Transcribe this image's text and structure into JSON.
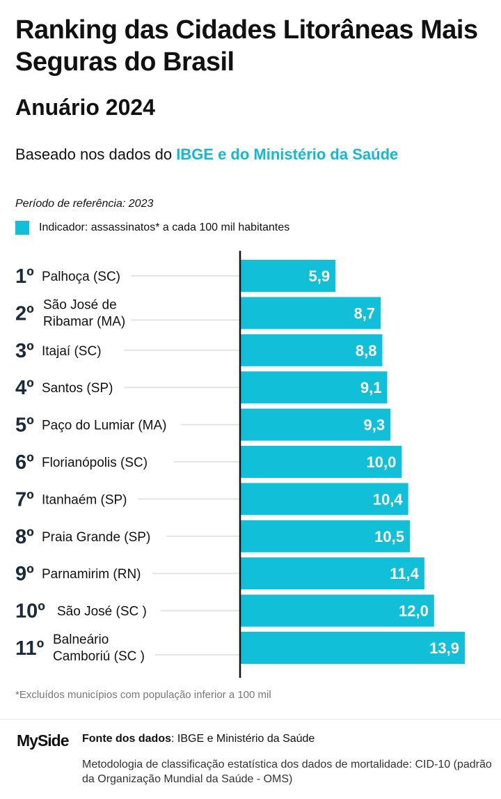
{
  "header": {
    "title": "Ranking das Cidades Litorâneas Mais Seguras do Brasil",
    "subtitle": "Anuário 2024",
    "basis_prefix": "Baseado nos dados do ",
    "basis_highlight": "IBGE e do Ministério da Saúde",
    "period": "Período de referência: 2023",
    "legend_label": "Indicador: assassinatos* a cada 100 mil habitantes"
  },
  "colors": {
    "bar": "#12bfd8",
    "highlight_text": "#12b8d4",
    "rank_text": "#1b2a3a",
    "axis": "#111111"
  },
  "chart_data": {
    "type": "bar",
    "orientation": "horizontal",
    "title": "Ranking das Cidades Litorâneas Mais Seguras do Brasil",
    "series": [
      {
        "name": "Indicador: assassinatos* a cada 100 mil habitantes",
        "values": [
          5.9,
          8.7,
          8.8,
          9.1,
          9.3,
          10.0,
          10.4,
          10.5,
          11.4,
          12.0,
          13.9
        ]
      }
    ],
    "ranks": [
      "1º",
      "2º",
      "3º",
      "4º",
      "5º",
      "6º",
      "7º",
      "8º",
      "9º",
      "10º",
      "11º"
    ],
    "categories": [
      [
        "Palhoça (SC)"
      ],
      [
        "São José de",
        "Ribamar (MA)"
      ],
      [
        "Itajaí (SC)"
      ],
      [
        "Santos (SP)"
      ],
      [
        "Paço do Lumiar (MA)"
      ],
      [
        "Florianópolis (SC)"
      ],
      [
        "Itanhaém (SP)"
      ],
      [
        "Praia Grande (SP)"
      ],
      [
        "Parnamirim (RN)"
      ],
      [
        "São José (SC )"
      ],
      [
        "Balneário",
        "Camboriú (SC )"
      ]
    ],
    "value_labels": [
      "5,9",
      "8,7",
      "8,8",
      "9,1",
      "9,3",
      "10,0",
      "10,4",
      "10,5",
      "11,4",
      "12,0",
      "13,9"
    ],
    "xlim": [
      0,
      14.1
    ],
    "grid": false,
    "legend_position": "top-left"
  },
  "footer": {
    "footnote": "*Excluídos municípios com população inferior a 100 mil",
    "logo": "MySide",
    "source_label": "Fonte dos dados",
    "source_text": ": IBGE e Ministério da Saúde",
    "methodology": "Metodologia de classificação estatística dos dados de mortalidade: CID-10 (padrão da Organização Mundial da Saúde - OMS)"
  }
}
